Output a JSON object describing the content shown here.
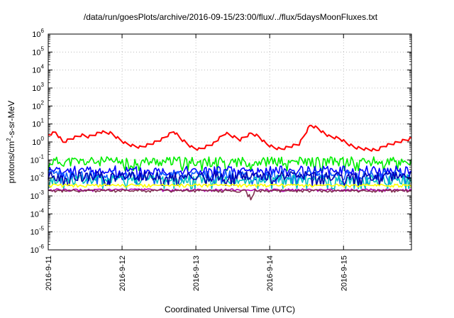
{
  "chart_data": {
    "type": "line",
    "title": "/data/run/goesPlots/archive/2016-09-15/23:00/flux/../flux/5daysMoonFluxes.txt",
    "xlabel": "Coordinated Universal Time (UTC)",
    "ylabel": "protons/cm2-s-sr-MeV",
    "ylabel_parts": {
      "pre": "protons/cm",
      "sup": "2",
      "post": "-s-sr-MeV"
    },
    "yscale": "log",
    "ylim": [
      1e-06,
      1000000.0
    ],
    "xlim": [
      0,
      4.92
    ],
    "x_unit_note": "days from 2016-9-11 00:00 UTC",
    "y_tick_exponents": [
      -6,
      -5,
      -4,
      -3,
      -2,
      -1,
      0,
      1,
      2,
      3,
      4,
      5,
      6
    ],
    "y_tick_base": "10",
    "x_ticks": [
      0,
      1,
      2,
      3,
      4
    ],
    "x_tick_labels": [
      "2016-9-11",
      "2016-9-12",
      "2016-9-13",
      "2016-9-14",
      "2016-9-15"
    ],
    "grid": true,
    "series": [
      {
        "color": "#ff0000",
        "x": [
          0.0,
          0.1,
          0.2,
          0.3,
          0.45,
          0.55,
          0.7,
          0.85,
          0.95,
          1.05,
          1.15,
          1.25,
          1.4,
          1.55,
          1.7,
          1.8,
          1.95,
          2.05,
          2.15,
          2.25,
          2.4,
          2.5,
          2.6,
          2.75,
          2.85,
          2.95,
          3.05,
          3.15,
          3.3,
          3.4,
          3.55,
          3.65,
          3.8,
          3.95,
          4.05,
          4.15,
          4.3,
          4.45,
          4.55,
          4.7,
          4.8,
          4.92
        ],
        "values": [
          2.5,
          3.5,
          1.0,
          1.5,
          2.5,
          2.0,
          3.5,
          3.0,
          1.5,
          0.8,
          0.6,
          0.5,
          0.8,
          1.5,
          4.0,
          1.5,
          0.5,
          0.4,
          0.6,
          0.9,
          3.0,
          2.0,
          1.3,
          3.0,
          2.0,
          0.8,
          0.5,
          0.4,
          0.6,
          0.8,
          9.0,
          6.0,
          2.0,
          1.5,
          0.8,
          0.5,
          0.4,
          0.35,
          0.6,
          0.9,
          1.2,
          1.6
        ]
      },
      {
        "color": "#00ee00",
        "level": 0.08,
        "jitter": 0.55,
        "seed": 11
      },
      {
        "color": "#0000ff",
        "level": 0.025,
        "jitter": 0.55,
        "seed": 23
      },
      {
        "color": "#1060ff",
        "level": 0.014,
        "jitter": 0.55,
        "seed": 37
      },
      {
        "color": "#00c0c0",
        "level": 0.008,
        "jitter": 0.55,
        "seed": 41
      },
      {
        "color": "#0000b0",
        "level": 0.012,
        "jitter": 0.55,
        "seed": 53
      },
      {
        "color": "#ffff00",
        "level": 0.004,
        "jitter": 0.12,
        "seed": 61
      },
      {
        "color": "#b000b0",
        "level": 0.0022,
        "jitter": 0.1,
        "seed": 79
      },
      {
        "color": "#803050",
        "level": 0.002,
        "jitter": 0.1,
        "seed": 83,
        "dip_x": 2.75,
        "dip_values": [
          0.0012,
          0.0006,
          0.0009
        ]
      }
    ]
  }
}
